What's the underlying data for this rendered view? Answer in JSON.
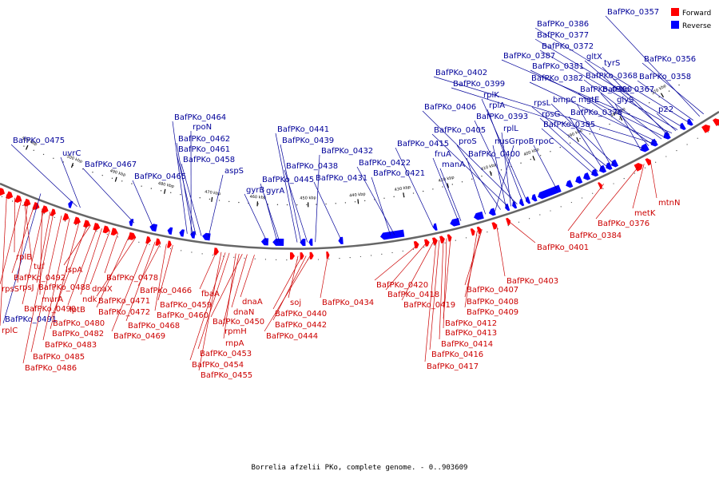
{
  "caption": "Borrelia afzelii PKo, complete genome. - 0..903609",
  "legend": [
    {
      "label": "Forward",
      "color": "#ff0000"
    },
    {
      "label": "Reverse",
      "color": "#0000ff"
    }
  ],
  "colors": {
    "forward_text": "#cc0000",
    "reverse_text": "#000099",
    "backbone": "#666666"
  },
  "ticks": [
    "370 kbp",
    "380 kbp",
    "390 kbp",
    "400 kbp",
    "410 kbp",
    "420 kbp",
    "430 kbp",
    "440 kbp",
    "450 kbp",
    "460 kbp",
    "470 kbp",
    "480 kbp",
    "490 kbp",
    "500 kbp",
    "510 kbp"
  ],
  "reverse_labels": [
    "BafPKo_0357",
    "BafPKo_0386",
    "BafPKo_0377",
    "BafPKo_0372",
    "BafPKo_0387",
    "gltX",
    "tyrS",
    "BafPKo_0356",
    "BafPKo_0381",
    "BafPKo_0368",
    "BafPKo_0358",
    "BafPKo_0402",
    "BafPKo_0382",
    "BafPKo_0380",
    "BafPKo_0367",
    "BafPKo_0399",
    "bmpC",
    "mgtE",
    "glyS",
    "p22",
    "rplK",
    "rpsL",
    "rplA",
    "BafPKo_0406",
    "BafPKo_0378",
    "rpsG",
    "BafPKo_0393",
    "BafPKo_0385",
    "rplL",
    "BafPKo_0405",
    "nusG",
    "BafPKo_0464",
    "rpoN",
    "proS",
    "rpoB",
    "rpoC",
    "BafPKo_0441",
    "BafPKo_0462",
    "BafPKo_0475",
    "BafPKo_0439",
    "BafPKo_0415",
    "BafPKo_0400",
    "BafPKo_0461",
    "fruA",
    "uvrC",
    "BafPKo_0432",
    "BafPKo_0458",
    "BafPKo_0467",
    "BafPKo_0438",
    "BafPKo_0422",
    "manA",
    "aspS",
    "BafPKo_0465",
    "BafPKo_0421",
    "BafPKo_0445",
    "BafPKo_0431",
    "gyrB",
    "gyrA",
    "BafPKo_0491"
  ],
  "forward_labels": [
    "mtnN",
    "metK",
    "BafPKo_0376",
    "BafPKo_0384",
    "BafPKo_0401",
    "BafPKo_0403",
    "BafPKo_0420",
    "BafPKo_0407",
    "BafPKo_0418",
    "BafPKo_0408",
    "BafPKo_0419",
    "BafPKo_0409",
    "BafPKo_0412",
    "BafPKo_0413",
    "BafPKo_0414",
    "BafPKo_0416",
    "BafPKo_0417",
    "BafPKo_0434",
    "soj",
    "BafPKo_0440",
    "BafPKo_0442",
    "BafPKo_0444",
    "dnaA",
    "dnaN",
    "BafPKo_0450",
    "rpmH",
    "rnpA",
    "BafPKo_0453",
    "BafPKo_0454",
    "BafPKo_0455",
    "fbaA",
    "BafPKo_0459",
    "BafPKo_0460",
    "BafPKo_0466",
    "BafPKo_0468",
    "BafPKo_0469",
    "BafPKo_0471",
    "BafPKo_0472",
    "BafPKo_0478",
    "dnaX",
    "ndk",
    "lptB",
    "lspA",
    "BafPKo_0480",
    "BafPKo_0482",
    "BafPKo_0483",
    "BafPKo_0485",
    "BafPKo_0486",
    "BafPKo_0488",
    "BafPKo_0490",
    "murA",
    "BafPKo_0492",
    "rpsJ",
    "rpsS",
    "rplB",
    "tuf",
    "rplC"
  ]
}
